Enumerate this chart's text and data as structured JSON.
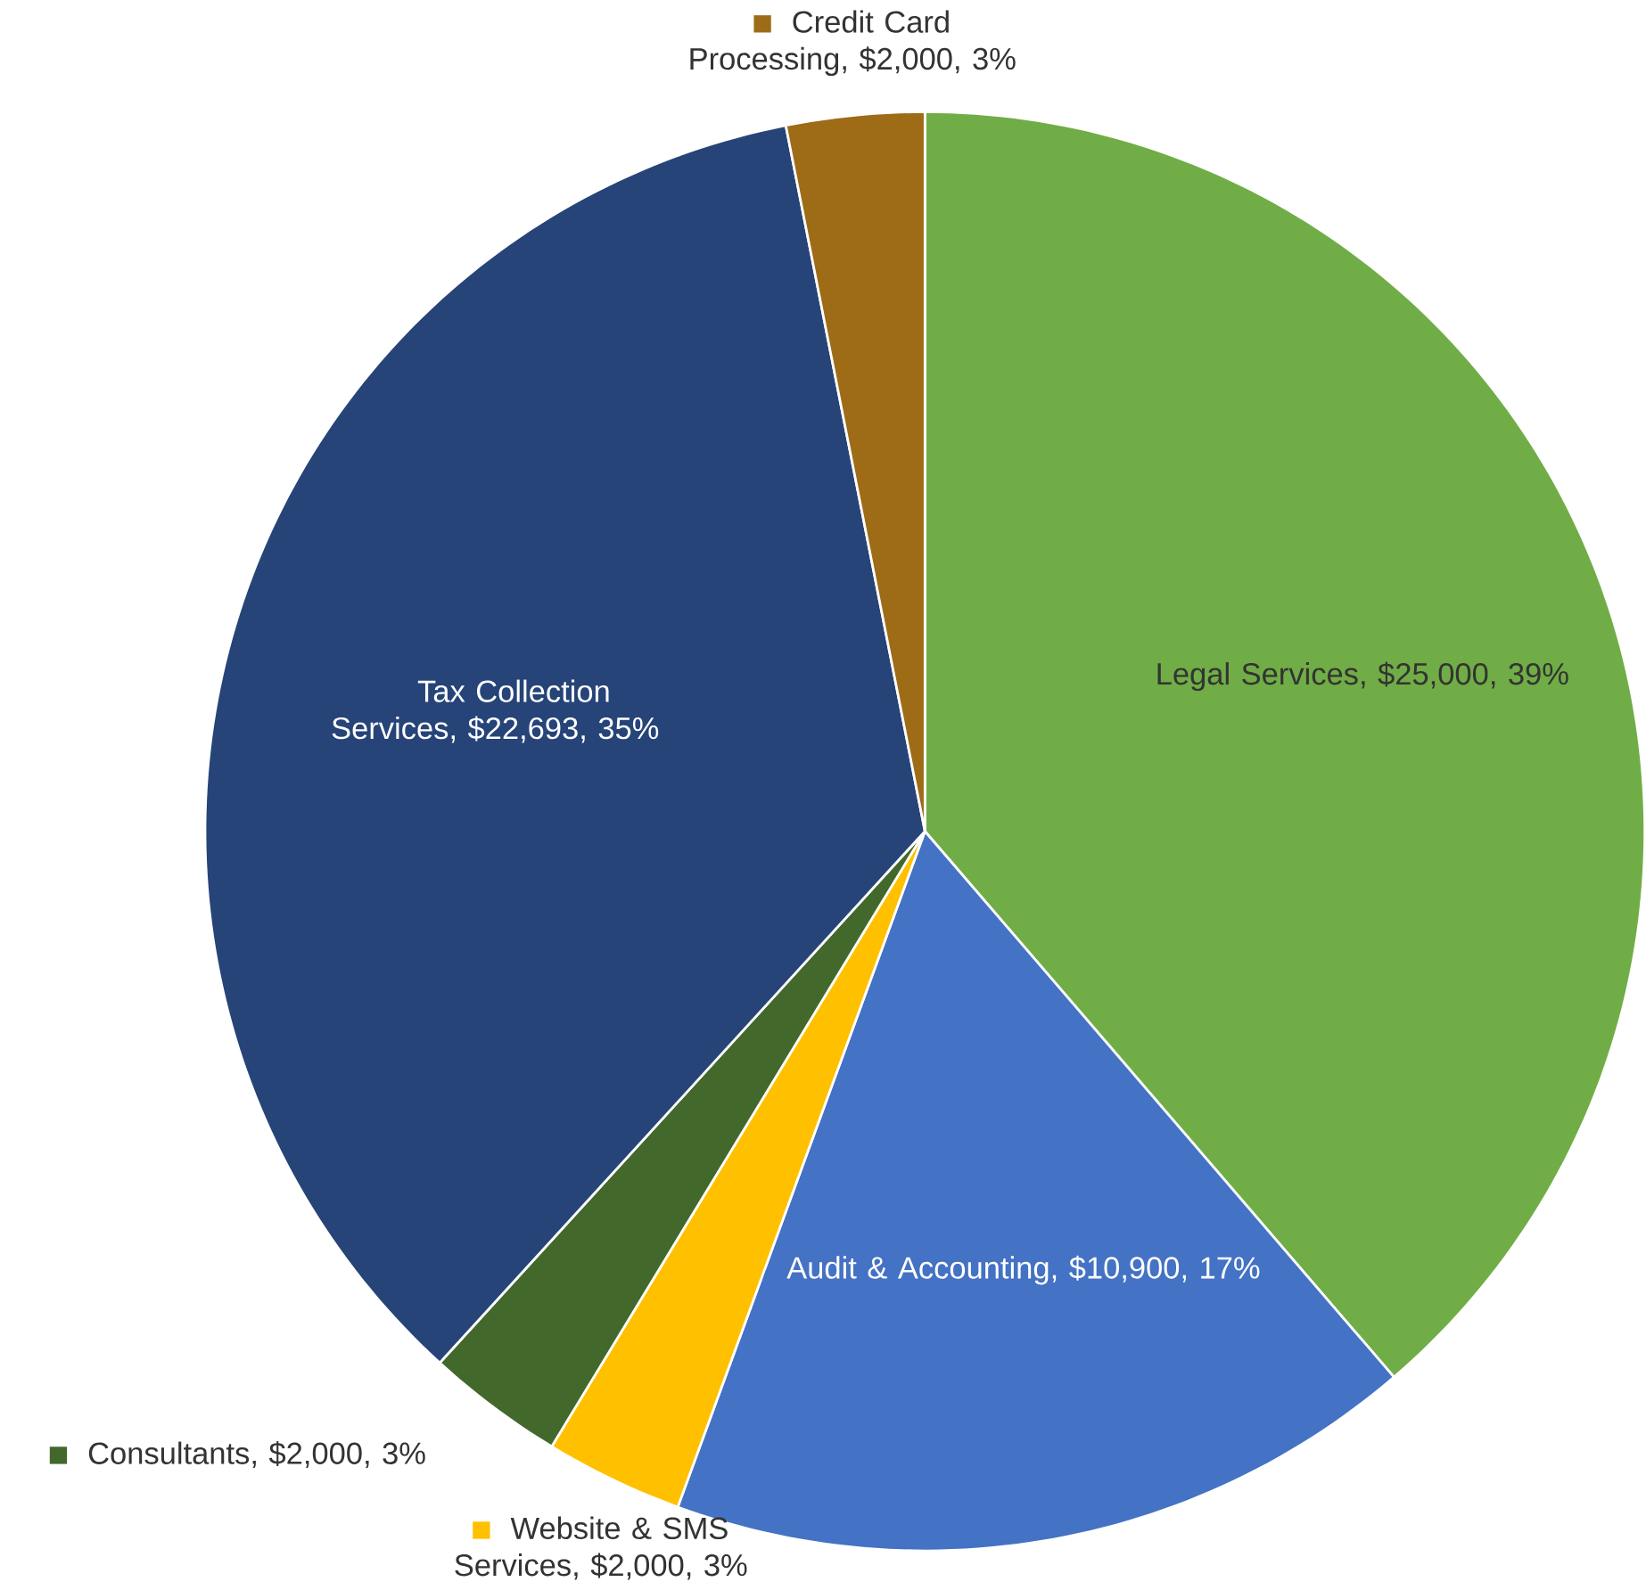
{
  "chart_data": {
    "type": "pie",
    "categories": [
      "Legal Services",
      "Audit & Accounting",
      "Website & SMS Services",
      "Consultants",
      "Tax Collection Services",
      "Credit Card Processing"
    ],
    "legend": true,
    "values": [
      25000,
      10900,
      2000,
      2000,
      22693,
      2000
    ],
    "colors": [
      "#70ad47",
      "#4472c4",
      "#ffc000",
      "#43682b",
      "#264478",
      "#9e6b17"
    ],
    "value_labels": [
      ", $25,000, 39%",
      ", $10,900, 17%",
      ", $2,000, 3%",
      ", $2,000, 3%",
      ", $22,693, 35%",
      ", $2,000, 3%"
    ]
  }
}
